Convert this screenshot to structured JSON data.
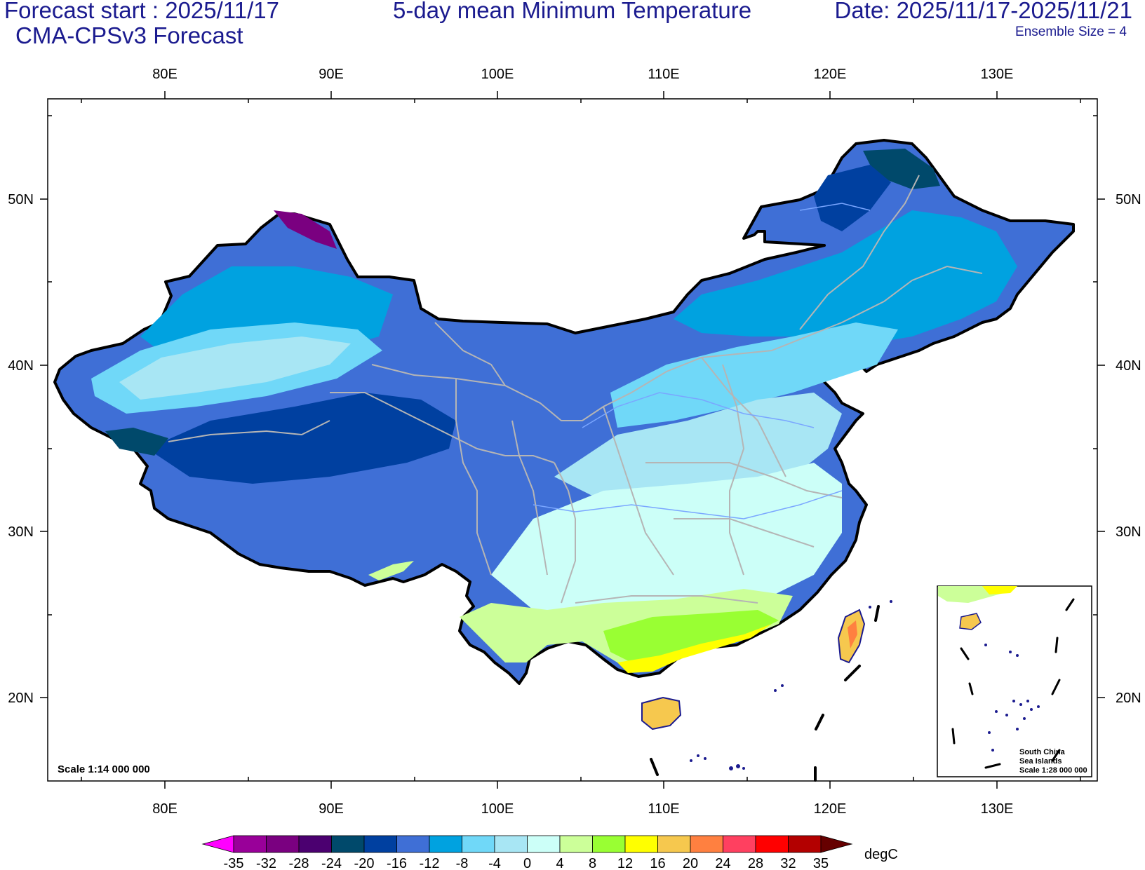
{
  "header": {
    "forecast_start": "Forecast start : 2025/11/17",
    "model": "CMA-CPSv3 Forecast",
    "title": "5-day mean Minimum Temperature",
    "date_range": "Date: 2025/11/17-2025/11/21",
    "ensemble": "Ensemble Size = 4"
  },
  "map": {
    "lon_labels": [
      "80E",
      "90E",
      "100E",
      "110E",
      "120E",
      "130E"
    ],
    "lat_labels": [
      "50N",
      "40N",
      "30N",
      "20N"
    ],
    "scale_main": "Scale 1:14 000 000",
    "inset": {
      "line1": "South China",
      "line2": "Sea Islands",
      "line3": "Scale 1:28 000 000"
    }
  },
  "colorbar": {
    "unit": "degC",
    "ticks": [
      "-35",
      "-32",
      "-28",
      "-24",
      "-20",
      "-16",
      "-12",
      "-8",
      "-4",
      "0",
      "4",
      "8",
      "12",
      "16",
      "20",
      "24",
      "28",
      "32",
      "35"
    ],
    "colors": [
      "#ff00ff",
      "#990099",
      "#7a0080",
      "#4b0070",
      "#00496b",
      "#0040a0",
      "#3f6fd6",
      "#00a2e0",
      "#70d8f8",
      "#a8e6f4",
      "#ccfff8",
      "#ccff99",
      "#99ff33",
      "#ffff00",
      "#f6c84e",
      "#ff8040",
      "#ff4060",
      "#ff0000",
      "#b30000",
      "#660000"
    ]
  }
}
